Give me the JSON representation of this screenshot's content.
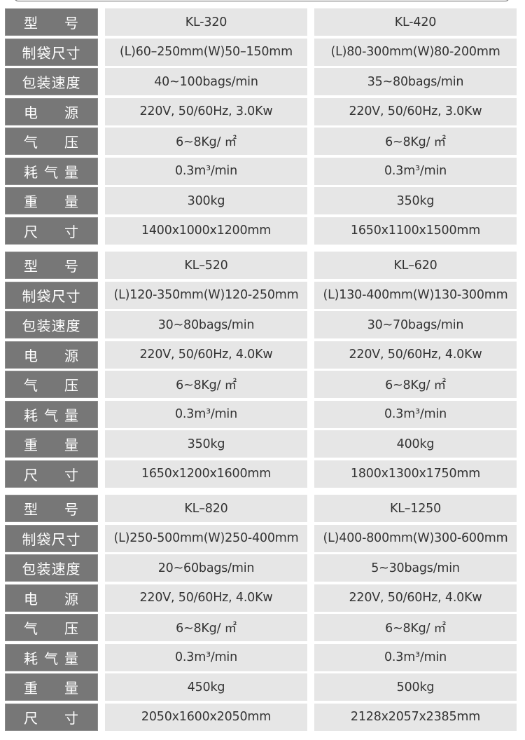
{
  "labels": [
    {
      "parts": [
        "型",
        "号"
      ]
    },
    {
      "text": "制袋尺寸"
    },
    {
      "text": "包装速度"
    },
    {
      "parts": [
        "电",
        "源"
      ]
    },
    {
      "parts": [
        "气",
        "压"
      ]
    },
    {
      "parts": [
        "耗",
        "气",
        "量"
      ]
    },
    {
      "parts": [
        "重",
        "量"
      ]
    },
    {
      "parts": [
        "尺",
        "寸"
      ]
    }
  ],
  "models": [
    {
      "model": "KL-320",
      "bag_size": "(L)60–250mm(W)50–150mm",
      "speed": "40~100bags/min",
      "power": "220V, 50/60Hz, 3.0Kw",
      "air_pressure": "6~8Kg/ ㎡",
      "air_consumption": "0.3m³/min",
      "weight": "300kg",
      "dimensions": "1400x1000x1200mm"
    },
    {
      "model": "KL-420",
      "bag_size": "(L)80-300mm(W)80-200mm",
      "speed": "35~80bags/min",
      "power": "220V, 50/60Hz, 3.0Kw",
      "air_pressure": "6~8Kg/ ㎡",
      "air_consumption": "0.3m³/min",
      "weight": "350kg",
      "dimensions": "1650x1100x1500mm"
    },
    {
      "model": "KL–520",
      "bag_size": "(L)120-350mm(W)120-250mm",
      "speed": "30~80bags/min",
      "power": "220V, 50/60Hz, 4.0Kw",
      "air_pressure": "6~8Kg/ ㎡",
      "air_consumption": "0.3m³/min",
      "weight": "350kg",
      "dimensions": "1650x1200x1600mm"
    },
    {
      "model": "KL–620",
      "bag_size": "(L)130-400mm(W)130-300mm",
      "speed": "30~70bags/min",
      "power": "220V, 50/60Hz, 4.0Kw",
      "air_pressure": "6~8Kg/ ㎡",
      "air_consumption": "0.3m³/min",
      "weight": "400kg",
      "dimensions": "1800x1300x1750mm"
    },
    {
      "model": "KL–820",
      "bag_size": "(L)250-500mm(W)250-400mm",
      "speed": "20~60bags/min",
      "power": "220V, 50/60Hz, 4.0Kw",
      "air_pressure": "6~8Kg/ ㎡",
      "air_consumption": "0.3m³/min",
      "weight": "450kg",
      "dimensions": "2050x1600x2050mm"
    },
    {
      "model": "KL–1250",
      "bag_size": "(L)400-800mm(W)300-600mm",
      "speed": "5~30bags/min",
      "power": "220V, 50/60Hz, 4.0Kw",
      "air_pressure": "6~8Kg/ ㎡",
      "air_consumption": "0.3m³/min",
      "weight": "500kg",
      "dimensions": "2128x2057x2385mm"
    }
  ]
}
